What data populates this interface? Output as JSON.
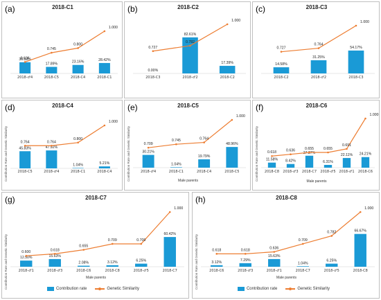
{
  "colors": {
    "bar": "#1a9ad6",
    "line": "#ed7d31"
  },
  "chart_data": [
    {
      "type": "bar",
      "panel_label": "(a)",
      "title": "2018-C1",
      "xlabel": "",
      "ylabel": "",
      "categories": [
        "2018-♂4",
        "2018-C5",
        "2018-C4",
        "2018-C1"
      ],
      "series": [
        {
          "name": "",
          "values": [
            30.53,
            17.89,
            23.16,
            28.42
          ],
          "labels": [
            "30.53%",
            "17.89%",
            "23.16%",
            "28.42%"
          ]
        },
        {
          "name": "",
          "type": "line",
          "values": [
            0.636,
            0.745,
            0.8,
            1.0
          ],
          "labels": [
            "0.636",
            "0.745",
            "0.800",
            "1.000"
          ]
        }
      ]
    },
    {
      "type": "bar",
      "panel_label": "(b)",
      "title": "2018-C2",
      "xlabel": "",
      "ylabel": "",
      "categories": [
        "2018-C3",
        "2018-♂2",
        "2018-C2"
      ],
      "series": [
        {
          "name": "",
          "values": [
            0.0,
            82.61,
            17.39
          ],
          "labels": [
            "0.00%",
            "82.61%",
            "17.39%"
          ]
        },
        {
          "name": "",
          "type": "line",
          "values": [
            0.727,
            0.782,
            1.0
          ],
          "labels": [
            "0.727",
            "0.782",
            "1.000"
          ]
        }
      ]
    },
    {
      "type": "bar",
      "panel_label": "(c)",
      "title": "2018-C3",
      "xlabel": "",
      "ylabel": "",
      "categories": [
        "2018-C2",
        "2018-♂2",
        "2018-C3"
      ],
      "series": [
        {
          "name": "",
          "values": [
            14.58,
            31.25,
            54.17
          ],
          "labels": [
            "14.58%",
            "31.25%",
            "54.17%"
          ]
        },
        {
          "name": "",
          "type": "line",
          "values": [
            0.727,
            0.764,
            1.0
          ],
          "labels": [
            "0.727",
            "0.764",
            "1.000"
          ]
        }
      ]
    },
    {
      "type": "bar",
      "panel_label": "(d)",
      "title": "2018-C4",
      "xlabel": "",
      "ylabel": "Contribution Rate and Genetic Similarity",
      "categories": [
        "2018-C5",
        "2018-♂4",
        "2018-C1",
        "2018-C4"
      ],
      "series": [
        {
          "name": "",
          "values": [
            45.83,
            47.92,
            1.04,
            5.21
          ],
          "labels": [
            "45.83%",
            "47.92%",
            "1.04%",
            "5.21%"
          ]
        },
        {
          "name": "",
          "type": "line",
          "values": [
            0.764,
            0.764,
            0.8,
            1.0
          ],
          "labels": [
            "0.764",
            "0.764",
            "0.800",
            "1.000"
          ]
        }
      ]
    },
    {
      "type": "bar",
      "panel_label": "(e)",
      "title": "2018-C5",
      "xlabel": "Male parents",
      "ylabel": "Contribution Rate and Genetic Similarity",
      "categories": [
        "2018-♂4",
        "2018-C1",
        "2018-C4",
        "2018-C5"
      ],
      "series": [
        {
          "name": "",
          "values": [
            30.21,
            1.04,
            19.79,
            48.96
          ],
          "labels": [
            "30.21%",
            "1.04%",
            "19.79%",
            "48.96%"
          ]
        },
        {
          "name": "",
          "type": "line",
          "values": [
            0.709,
            0.745,
            0.764,
            1.0
          ],
          "labels": [
            "0.709",
            "0.745",
            "0.764",
            "1.000"
          ]
        }
      ]
    },
    {
      "type": "bar",
      "panel_label": "(f)",
      "title": "2018-C6",
      "xlabel": "Male parents",
      "ylabel": "Contribution Rate and Genetic Similarity",
      "categories": [
        "2018-C8",
        "2018-♂3",
        "2018-C7",
        "2018-♂5",
        "2018-♂1",
        "2018-C6"
      ],
      "series": [
        {
          "name": "",
          "values": [
            11.58,
            8.42,
            27.37,
            6.31,
            22.11,
            24.21
          ],
          "labels": [
            "11.58%",
            "8.42%",
            "27.37%",
            "6.31%",
            "22.11%",
            "24.21%"
          ]
        },
        {
          "name": "",
          "type": "line",
          "values": [
            0.618,
            0.636,
            0.655,
            0.655,
            0.691,
            1.0
          ],
          "labels": [
            "0.618",
            "0.636",
            "0.655",
            "0.655",
            "0.691",
            "1.000"
          ]
        }
      ]
    },
    {
      "type": "bar",
      "panel_label": "(g)",
      "title": "2018-C7",
      "xlabel": "Male parents",
      "ylabel": "Contribution Rate and Genetic Similarity",
      "categories": [
        "2018-♂1",
        "2018-♂3",
        "2018-C6",
        "2018-C8",
        "2018-♂5",
        "2018-C7"
      ],
      "series": [
        {
          "name": "Contribution rate",
          "values": [
            12.5,
            15.63,
            2.08,
            3.12,
            6.25,
            60.42
          ],
          "labels": [
            "12.50%",
            "15.63%",
            "2.08%",
            "3.12%",
            "6.25%",
            "60.42%"
          ]
        },
        {
          "name": "Genetic Similarity",
          "type": "line",
          "values": [
            0.6,
            0.618,
            0.655,
            0.709,
            0.709,
            1.0
          ],
          "labels": [
            "0.600",
            "0.618",
            "0.655",
            "0.709",
            "0.709",
            "1.000"
          ]
        }
      ]
    },
    {
      "type": "bar",
      "panel_label": "(h)",
      "title": "2018-C8",
      "xlabel": "Male parents",
      "ylabel": "Contribution Rate and Genetic Similarity",
      "categories": [
        "2018-C6",
        "2018-♂3",
        "2018-♂1",
        "2018-C7",
        "2018-♂5",
        "2018-C8"
      ],
      "series": [
        {
          "name": "Contribution rate",
          "values": [
            3.12,
            7.29,
            15.63,
            1.04,
            6.25,
            66.67
          ],
          "labels": [
            "3.12%",
            "7.29%",
            "15.63%",
            "1.04%",
            "6.25%",
            "66.67%"
          ]
        },
        {
          "name": "Genetic Similarity",
          "type": "line",
          "values": [
            0.618,
            0.618,
            0.636,
            0.709,
            0.782,
            1.0
          ],
          "labels": [
            "0.618",
            "0.618",
            "0.636",
            "0.709",
            "0.782",
            "1.000"
          ]
        }
      ]
    }
  ]
}
